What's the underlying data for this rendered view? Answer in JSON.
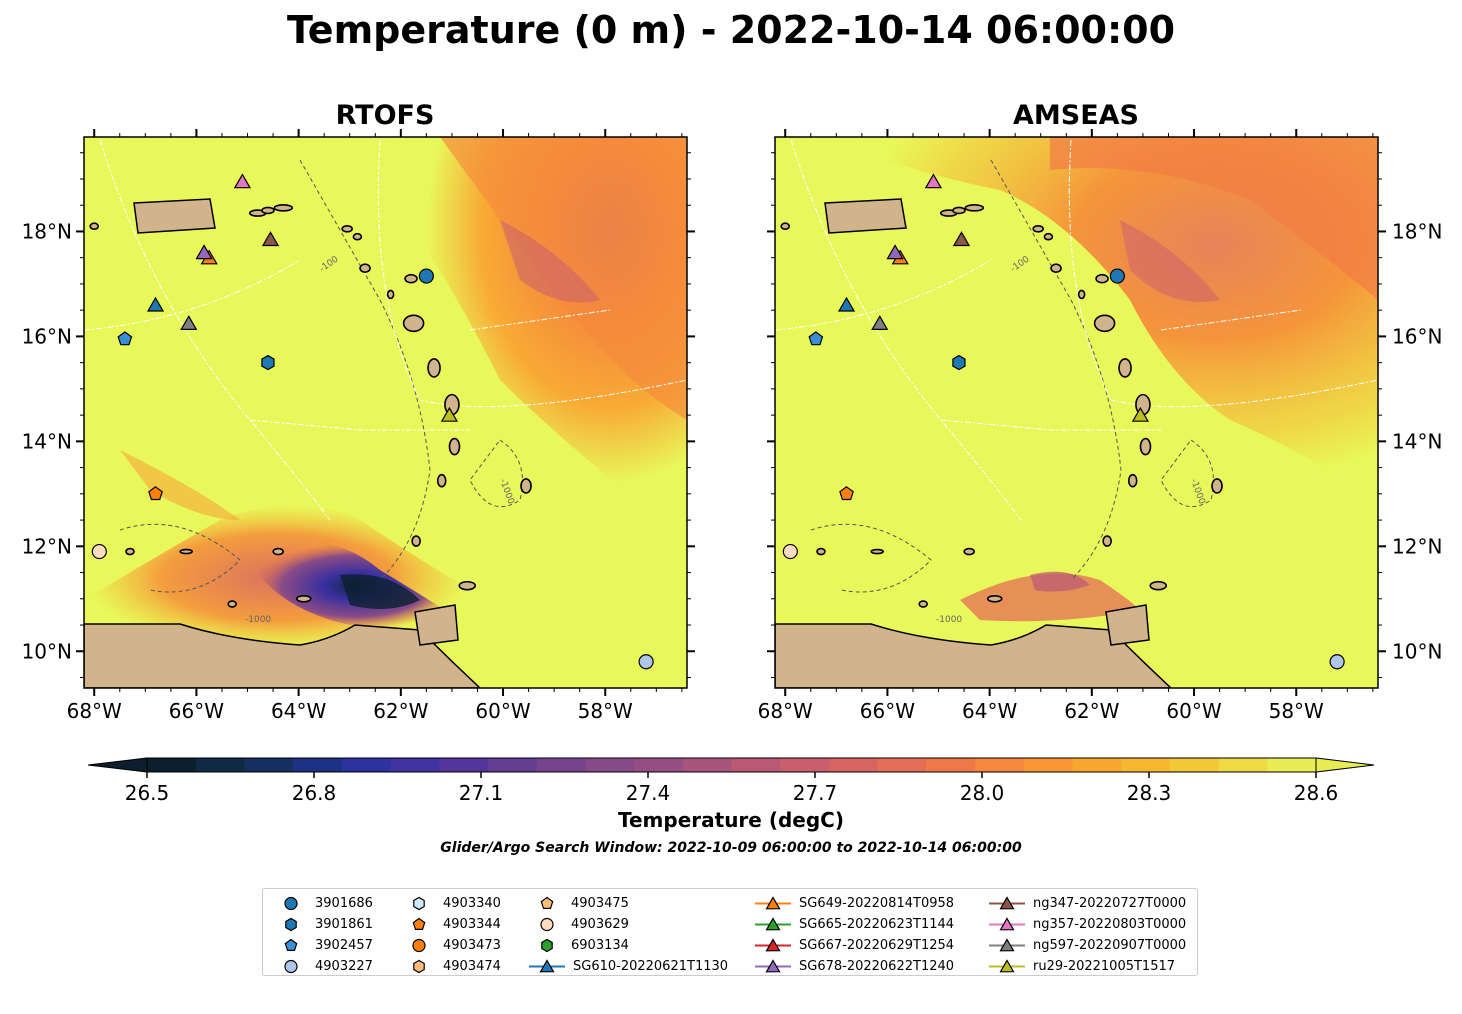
{
  "title": "Temperature (0 m) - 2022-10-14 06:00:00",
  "panels": [
    {
      "title": "RTOFS"
    },
    {
      "title": "AMSEAS"
    }
  ],
  "map": {
    "lon_range": [
      -68.2,
      -56.4
    ],
    "lat_range": [
      9.3,
      19.8
    ],
    "lon_ticks": [
      "68°W",
      "66°W",
      "64°W",
      "62°W",
      "60°W",
      "58°W"
    ],
    "lat_ticks": [
      "10°N",
      "12°N",
      "14°N",
      "16°N",
      "18°N"
    ],
    "contour_labels": [
      "-100",
      "-1000"
    ],
    "colors": {
      "land": "#d2b48c",
      "ocean_warm": "#e8f85a",
      "warm_orange": "#f7913a",
      "cool_purple": "#4a2f93",
      "eez_lines": "#ffffff"
    }
  },
  "colorbar": {
    "label": "Temperature (degC)",
    "ticks": [
      "26.5",
      "26.8",
      "27.1",
      "27.4",
      "27.7",
      "28.0",
      "28.3",
      "28.6"
    ],
    "min": 26.4,
    "max": 28.7,
    "colors": [
      "#0b1f2e",
      "#0f2a45",
      "#142f60",
      "#1d3285",
      "#2c33a0",
      "#4133a2",
      "#543599",
      "#653d91",
      "#76438c",
      "#874a88",
      "#974f83",
      "#a8547d",
      "#b95976",
      "#c95e6d",
      "#d86462",
      "#e56c55",
      "#ef7848",
      "#f6873c",
      "#f99633",
      "#f9a62f",
      "#f7b731",
      "#f3c838",
      "#efda44",
      "#e8ec55"
    ]
  },
  "search_window": "Glider/Argo Search Window: 2022-10-09 06:00:00 to 2022-10-14 06:00:00",
  "legend": [
    {
      "label": "3901686",
      "marker": "circle",
      "color": "#1f77b4"
    },
    {
      "label": "3901861",
      "marker": "hexagon",
      "color": "#1f77b4"
    },
    {
      "label": "3902457",
      "marker": "pentagon",
      "color": "#3a8fd4"
    },
    {
      "label": "4903227",
      "marker": "circle",
      "color": "#aec7e8"
    },
    {
      "label": "4903340",
      "marker": "hexagon",
      "color": "#cfe8fb"
    },
    {
      "label": "4903344",
      "marker": "pentagon",
      "color": "#ff7f0e"
    },
    {
      "label": "4903473",
      "marker": "circle",
      "color": "#ff7f0e"
    },
    {
      "label": "4903474",
      "marker": "hexagon",
      "color": "#ffbb78"
    },
    {
      "label": "4903475",
      "marker": "pentagon",
      "color": "#ffbb78"
    },
    {
      "label": "4903629",
      "marker": "circle",
      "color": "#ffdcc0"
    },
    {
      "label": "6903134",
      "marker": "hexagon",
      "color": "#2ca02c"
    },
    {
      "label": "SG610-20220621T1130",
      "marker": "triangle-line",
      "color": "#1f77b4"
    },
    {
      "label": "SG649-20220814T0958",
      "marker": "triangle-line",
      "color": "#ff7f0e"
    },
    {
      "label": "SG665-20220623T1144",
      "marker": "triangle-line",
      "color": "#2ca02c"
    },
    {
      "label": "SG667-20220629T1254",
      "marker": "triangle-line",
      "color": "#d62728"
    },
    {
      "label": "SG678-20220622T1240",
      "marker": "triangle-line",
      "color": "#9467bd"
    },
    {
      "label": "ng347-20220727T0000",
      "marker": "triangle-line",
      "color": "#8c564b"
    },
    {
      "label": "ng357-20220803T0000",
      "marker": "triangle-line",
      "color": "#e377c2"
    },
    {
      "label": "ng597-20220907T0000",
      "marker": "triangle-line",
      "color": "#7f7f7f"
    },
    {
      "label": "ru29-20221005T1517",
      "marker": "triangle-line",
      "color": "#bcbd22"
    }
  ],
  "map_markers": [
    {
      "name": "3901686",
      "marker": "circle",
      "color": "#1f77b4",
      "lon": -61.5,
      "lat": 17.15
    },
    {
      "name": "3901861",
      "marker": "hexagon",
      "color": "#1f77b4",
      "lon": -64.6,
      "lat": 15.5
    },
    {
      "name": "3902457",
      "marker": "pentagon",
      "color": "#3a8fd4",
      "lon": -67.4,
      "lat": 15.95
    },
    {
      "name": "4903227",
      "marker": "circle",
      "color": "#aec7e8",
      "lon": -57.2,
      "lat": 9.8
    },
    {
      "name": "4903344",
      "marker": "pentagon",
      "color": "#ff7f0e",
      "lon": -66.8,
      "lat": 13.0
    },
    {
      "name": "4903629",
      "marker": "circle",
      "color": "#ffdcc0",
      "lon": -67.9,
      "lat": 11.9
    },
    {
      "name": "SG610-20220621T1130",
      "marker": "triangle",
      "color": "#1f77b4",
      "lon": -66.8,
      "lat": 16.6
    },
    {
      "name": "SG649-20220814T0958",
      "marker": "triangle",
      "color": "#ff7f0e",
      "lon": -65.75,
      "lat": 17.5
    },
    {
      "name": "SG678-20220622T1240",
      "marker": "triangle",
      "color": "#9467bd",
      "lon": -65.85,
      "lat": 17.6
    },
    {
      "name": "ng347-20220727T0000",
      "marker": "triangle",
      "color": "#8c564b",
      "lon": -64.55,
      "lat": 17.85
    },
    {
      "name": "ng357-20220803T0000",
      "marker": "triangle",
      "color": "#e377c2",
      "lon": -65.1,
      "lat": 18.95
    },
    {
      "name": "ng597-20220907T0000",
      "marker": "triangle",
      "color": "#7f7f7f",
      "lon": -66.15,
      "lat": 16.25
    },
    {
      "name": "ru29-20221005T1517",
      "marker": "triangle",
      "color": "#bcbd22",
      "lon": -61.05,
      "lat": 14.5
    }
  ]
}
